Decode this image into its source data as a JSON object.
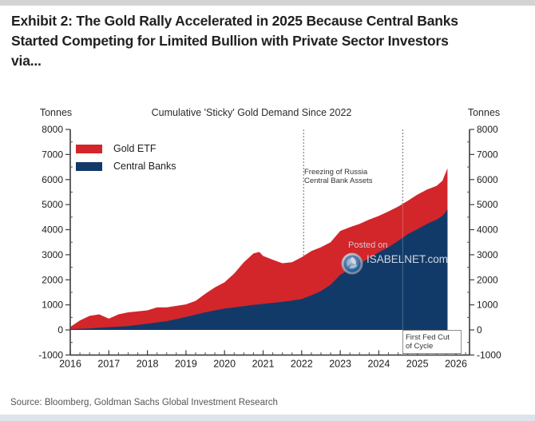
{
  "page": {
    "title_lines": [
      "Exhibit 2: The Gold Rally Accelerated in 2025 Because Central Banks",
      "Started Competing for Limited Bullion with Private Sector Investors",
      "via..."
    ],
    "source": "Source: Bloomberg, Goldman Sachs Global Investment Research"
  },
  "chart": {
    "title": "Cumulative 'Sticky' Gold Demand Since 2022",
    "axis_label_left": "Tonnes",
    "axis_label_right": "Tonnes",
    "legend": [
      {
        "label": "Gold ETF",
        "color": "#d2262b"
      },
      {
        "label": "Central Banks",
        "color": "#113a69"
      }
    ],
    "watermark": {
      "line1": "Posted on",
      "line2": "ISABELNET.com"
    },
    "annotation_freeze": {
      "line1": "Freezing of Russia",
      "line2": "Central Bank Assets"
    },
    "annotation_fedcut": {
      "line1": "First Fed Cut",
      "line2": "of Cycle"
    }
  },
  "chart_data": {
    "type": "area",
    "stacked": true,
    "title": "Cumulative 'Sticky' Gold Demand Since 2022",
    "ylabel": "Tonnes",
    "ylim": [
      -1000,
      8000
    ],
    "xlim": [
      2016,
      2026.35
    ],
    "grid": false,
    "legend_position": "top-left",
    "ytick_labels": [
      "8000",
      "7000",
      "6000",
      "5000",
      "4000",
      "3000",
      "2000",
      "1000",
      "0",
      "-1000"
    ],
    "xtick_labels": [
      "2016",
      "2017",
      "2018",
      "2019",
      "2020",
      "2021",
      "2022",
      "2023",
      "2024",
      "2025",
      "2026"
    ],
    "x": [
      2016.0,
      2016.25,
      2016.5,
      2016.75,
      2017.0,
      2017.25,
      2017.5,
      2017.75,
      2018.0,
      2018.25,
      2018.5,
      2018.75,
      2019.0,
      2019.25,
      2019.5,
      2019.75,
      2020.0,
      2020.25,
      2020.5,
      2020.75,
      2020.9,
      2021.0,
      2021.25,
      2021.5,
      2021.75,
      2022.0,
      2022.25,
      2022.5,
      2022.75,
      2023.0,
      2023.25,
      2023.5,
      2023.75,
      2024.0,
      2024.25,
      2024.5,
      2024.75,
      2025.0,
      2025.25,
      2025.5,
      2025.65,
      2025.78
    ],
    "series": [
      {
        "name": "Central Banks",
        "color": "#113a69",
        "values": [
          30,
          45,
          60,
          85,
          110,
          130,
          150,
          200,
          250,
          300,
          350,
          430,
          520,
          610,
          700,
          780,
          850,
          900,
          950,
          1000,
          1020,
          1040,
          1080,
          1120,
          1170,
          1230,
          1380,
          1550,
          1800,
          2200,
          2430,
          2640,
          2860,
          3100,
          3300,
          3550,
          3820,
          4020,
          4230,
          4400,
          4550,
          4800
        ]
      },
      {
        "name": "Gold ETF",
        "color": "#d2262b",
        "values": [
          90,
          335,
          500,
          535,
          340,
          490,
          550,
          540,
          530,
          600,
          550,
          530,
          500,
          550,
          740,
          920,
          1050,
          1350,
          1750,
          2050,
          2090,
          1910,
          1720,
          1540,
          1530,
          1670,
          1770,
          1750,
          1700,
          1750,
          1670,
          1590,
          1540,
          1450,
          1430,
          1370,
          1330,
          1380,
          1370,
          1350,
          1400,
          1650
        ]
      }
    ],
    "event_lines": [
      {
        "x": 2022.05,
        "label": "Freezing of Russia Central Bank Assets"
      },
      {
        "x": 2024.62,
        "label": "First Fed Cut of Cycle"
      }
    ]
  }
}
